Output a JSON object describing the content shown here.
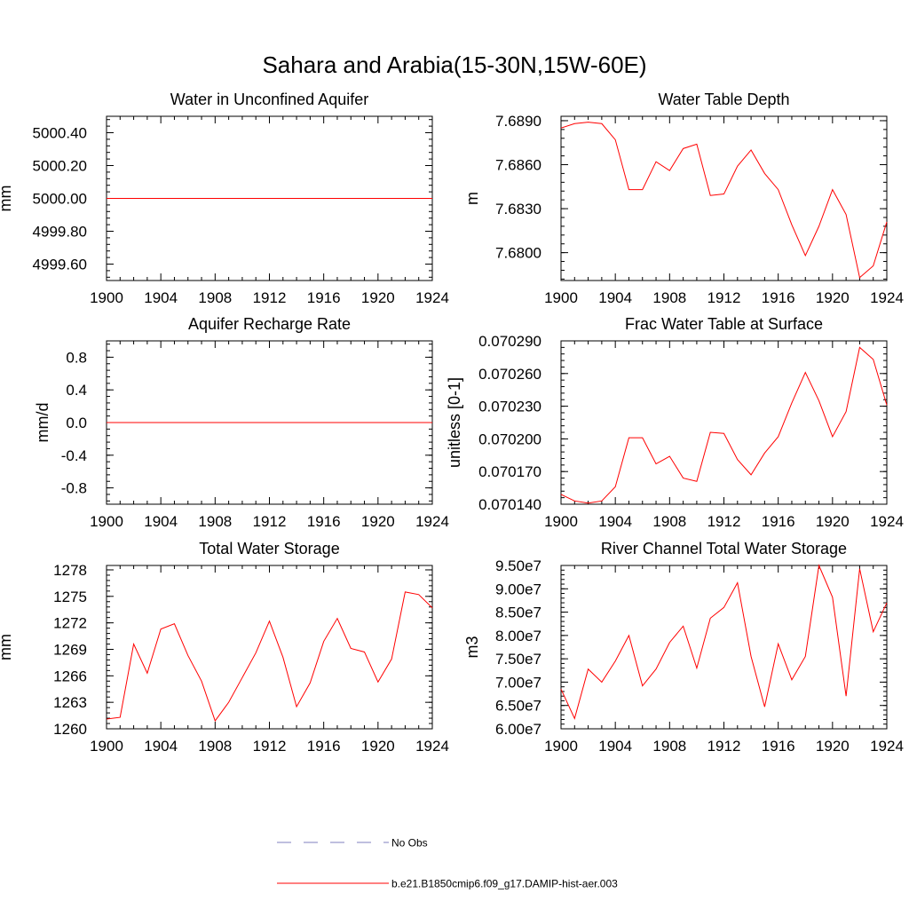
{
  "figure_title": "Sahara and Arabia(15-30N,15W-60E)",
  "legend": {
    "obs_label": "No Obs",
    "model_label": "b.e21.B1850cmip6.f09_g17.DAMIP-hist-aer.003"
  },
  "colors": {
    "model": "#ff0000",
    "obs": "#7f7fbf",
    "axis": "#000000"
  },
  "chart_data": [
    {
      "type": "line",
      "title": "Water in Unconfined Aquifer",
      "xlabel": "",
      "ylabel": "mm",
      "xlim": [
        1900,
        1924
      ],
      "ylim": [
        4999.5,
        5000.5
      ],
      "xticks": [
        "1900",
        "1904",
        "1908",
        "1912",
        "1916",
        "1920",
        "1924"
      ],
      "yticks": [
        {
          "v": 4999.6,
          "label": "4999.60"
        },
        {
          "v": 4999.8,
          "label": "4999.80"
        },
        {
          "v": 5000.0,
          "label": "5000.00"
        },
        {
          "v": 5000.2,
          "label": "5000.20"
        },
        {
          "v": 5000.4,
          "label": "5000.40"
        }
      ],
      "x": [
        1900,
        1901,
        1902,
        1903,
        1904,
        1905,
        1906,
        1907,
        1908,
        1909,
        1910,
        1911,
        1912,
        1913,
        1914,
        1915,
        1916,
        1917,
        1918,
        1919,
        1920,
        1921,
        1922,
        1923,
        1924
      ],
      "values": [
        5000,
        5000,
        5000,
        5000,
        5000,
        5000,
        5000,
        5000,
        5000,
        5000,
        5000,
        5000,
        5000,
        5000,
        5000,
        5000,
        5000,
        5000,
        5000,
        5000,
        5000,
        5000,
        5000,
        5000,
        5000
      ]
    },
    {
      "type": "line",
      "title": "Water Table Depth",
      "xlabel": "",
      "ylabel": "m",
      "xlim": [
        1900,
        1924
      ],
      "ylim": [
        7.6781,
        7.6893
      ],
      "xticks": [
        "1900",
        "1904",
        "1908",
        "1912",
        "1916",
        "1920",
        "1924"
      ],
      "yticks": [
        {
          "v": 7.68,
          "label": "7.6800"
        },
        {
          "v": 7.683,
          "label": "7.6830"
        },
        {
          "v": 7.686,
          "label": "7.6860"
        },
        {
          "v": 7.689,
          "label": "7.6890"
        }
      ],
      "x": [
        1900,
        1901,
        1902,
        1903,
        1904,
        1905,
        1906,
        1907,
        1908,
        1909,
        1910,
        1911,
        1912,
        1913,
        1914,
        1915,
        1916,
        1917,
        1918,
        1919,
        1920,
        1921,
        1922,
        1923,
        1924
      ],
      "values": [
        7.6885,
        7.6888,
        7.6889,
        7.6888,
        7.6877,
        7.6843,
        7.6843,
        7.6862,
        7.6856,
        7.6871,
        7.6874,
        7.6839,
        7.684,
        7.6859,
        7.687,
        7.6854,
        7.6843,
        7.6819,
        7.6798,
        7.6818,
        7.6843,
        7.6826,
        7.6783,
        7.6791,
        7.6821
      ]
    },
    {
      "type": "line",
      "title": "Aquifer Recharge Rate",
      "xlabel": "",
      "ylabel": "mm/d",
      "xlim": [
        1900,
        1924
      ],
      "ylim": [
        -1.0,
        1.0
      ],
      "xticks": [
        "1900",
        "1904",
        "1908",
        "1912",
        "1916",
        "1920",
        "1924"
      ],
      "yticks": [
        {
          "v": -0.8,
          "label": "-0.8"
        },
        {
          "v": -0.4,
          "label": "-0.4"
        },
        {
          "v": 0.0,
          "label": "0.0"
        },
        {
          "v": 0.4,
          "label": "0.4"
        },
        {
          "v": 0.8,
          "label": "0.8"
        }
      ],
      "x": [
        1900,
        1901,
        1902,
        1903,
        1904,
        1905,
        1906,
        1907,
        1908,
        1909,
        1910,
        1911,
        1912,
        1913,
        1914,
        1915,
        1916,
        1917,
        1918,
        1919,
        1920,
        1921,
        1922,
        1923,
        1924
      ],
      "values": [
        0,
        0,
        0,
        0,
        0,
        0,
        0,
        0,
        0,
        0,
        0,
        0,
        0,
        0,
        0,
        0,
        0,
        0,
        0,
        0,
        0,
        0,
        0,
        0,
        0
      ]
    },
    {
      "type": "line",
      "title": "Frac Water Table at Surface",
      "xlabel": "",
      "ylabel": "unitless [0-1]",
      "xlim": [
        1900,
        1924
      ],
      "ylim": [
        0.07014,
        0.07029
      ],
      "xticks": [
        "1900",
        "1904",
        "1908",
        "1912",
        "1916",
        "1920",
        "1924"
      ],
      "yticks": [
        {
          "v": 0.07014,
          "label": "0.070140"
        },
        {
          "v": 0.07017,
          "label": "0.070170"
        },
        {
          "v": 0.0702,
          "label": "0.070200"
        },
        {
          "v": 0.07023,
          "label": "0.070230"
        },
        {
          "v": 0.07026,
          "label": "0.070260"
        },
        {
          "v": 0.07029,
          "label": "0.070290"
        }
      ],
      "x": [
        1900,
        1901,
        1902,
        1903,
        1904,
        1905,
        1906,
        1907,
        1908,
        1909,
        1910,
        1911,
        1912,
        1913,
        1914,
        1915,
        1916,
        1917,
        1918,
        1919,
        1920,
        1921,
        1922,
        1923,
        1924
      ],
      "values": [
        0.070149,
        0.070143,
        0.070141,
        0.070143,
        0.070156,
        0.070201,
        0.070201,
        0.070177,
        0.070184,
        0.070164,
        0.070161,
        0.070206,
        0.070205,
        0.070181,
        0.070167,
        0.070187,
        0.070202,
        0.070233,
        0.070261,
        0.070235,
        0.070202,
        0.070225,
        0.070284,
        0.070273,
        0.070231
      ]
    },
    {
      "type": "line",
      "title": "Total Water Storage",
      "xlabel": "",
      "ylabel": "mm",
      "xlim": [
        1900,
        1924
      ],
      "ylim": [
        1260,
        1278.5
      ],
      "xticks": [
        "1900",
        "1904",
        "1908",
        "1912",
        "1916",
        "1920",
        "1924"
      ],
      "yticks": [
        {
          "v": 1260,
          "label": "1260"
        },
        {
          "v": 1263,
          "label": "1263"
        },
        {
          "v": 1266,
          "label": "1266"
        },
        {
          "v": 1269,
          "label": "1269"
        },
        {
          "v": 1272,
          "label": "1272"
        },
        {
          "v": 1275,
          "label": "1275"
        },
        {
          "v": 1278,
          "label": "1278"
        }
      ],
      "x": [
        1900,
        1901,
        1902,
        1903,
        1904,
        1905,
        1906,
        1907,
        1908,
        1909,
        1910,
        1911,
        1912,
        1913,
        1914,
        1915,
        1916,
        1917,
        1918,
        1919,
        1920,
        1921,
        1922,
        1923,
        1924
      ],
      "values": [
        1261.1,
        1261.3,
        1269.6,
        1266.3,
        1271.3,
        1271.9,
        1268.3,
        1265.4,
        1260.9,
        1263.0,
        1265.8,
        1268.6,
        1272.2,
        1268.1,
        1262.5,
        1265.2,
        1269.9,
        1272.5,
        1269.1,
        1268.7,
        1265.3,
        1267.9,
        1275.5,
        1275.2,
        1273.7
      ]
    },
    {
      "type": "line",
      "title": "River Channel Total Water Storage",
      "xlabel": "",
      "ylabel": "m3",
      "xlim": [
        1900,
        1924
      ],
      "ylim": [
        60000000.0,
        95000000.0
      ],
      "xticks": [
        "1900",
        "1904",
        "1908",
        "1912",
        "1916",
        "1920",
        "1924"
      ],
      "yticks": [
        {
          "v": 60000000.0,
          "label": "6.00e7"
        },
        {
          "v": 65000000.0,
          "label": "6.50e7"
        },
        {
          "v": 70000000.0,
          "label": "7.00e7"
        },
        {
          "v": 75000000.0,
          "label": "7.50e7"
        },
        {
          "v": 80000000.0,
          "label": "8.00e7"
        },
        {
          "v": 85000000.0,
          "label": "8.50e7"
        },
        {
          "v": 90000000.0,
          "label": "9.00e7"
        },
        {
          "v": 95000000.0,
          "label": "9.50e7"
        }
      ],
      "x": [
        1900,
        1901,
        1902,
        1903,
        1904,
        1905,
        1906,
        1907,
        1908,
        1909,
        1910,
        1911,
        1912,
        1913,
        1914,
        1915,
        1916,
        1917,
        1918,
        1919,
        1920,
        1921,
        1922,
        1923,
        1924
      ],
      "values": [
        68500000.0,
        62200000.0,
        72800000.0,
        70000000.0,
        74500000.0,
        80000000.0,
        69200000.0,
        72800000.0,
        78500000.0,
        82000000.0,
        73000000.0,
        83700000.0,
        86000000.0,
        91300000.0,
        75500000.0,
        64700000.0,
        78200000.0,
        70500000.0,
        75500000.0,
        95000000.0,
        88200000.0,
        67000000.0,
        94300000.0,
        80800000.0,
        87000000.0
      ]
    }
  ]
}
